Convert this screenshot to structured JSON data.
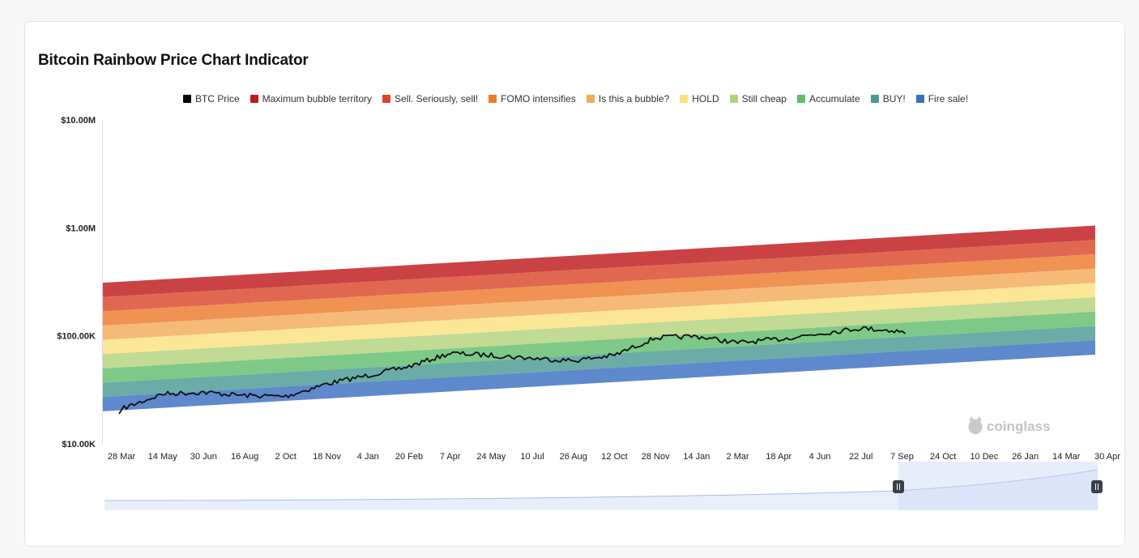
{
  "title": "Bitcoin Rainbow Price Chart Indicator",
  "watermark": "coinglass",
  "chart_data": {
    "type": "area",
    "title": "Bitcoin Rainbow Price Chart Indicator",
    "y_scale": "log",
    "ylim": [
      10000,
      10000000
    ],
    "y_ticks": [
      "$10.00K",
      "$100.00K",
      "$1.00M",
      "$10.00M"
    ],
    "y_tick_values": [
      10000,
      100000,
      1000000,
      10000000
    ],
    "x_tick_labels": [
      "28 Mar",
      "14 May",
      "30 Jun",
      "16 Aug",
      "2 Oct",
      "18 Nov",
      "4 Jan",
      "20 Feb",
      "7 Apr",
      "24 May",
      "10 Jul",
      "26 Aug",
      "12 Oct",
      "28 Nov",
      "14 Jan",
      "2 Mar",
      "18 Apr",
      "4 Jun",
      "22 Jul",
      "7 Sep",
      "24 Oct",
      "10 Dec",
      "26 Jan",
      "14 Mar",
      "30 Apr"
    ],
    "legend_position": "top-center",
    "grid": false,
    "band_edges": {
      "x": [
        "28 Mar",
        "30 Apr"
      ],
      "lower": [
        20000,
        67000
      ],
      "upper": [
        310000,
        1050000
      ]
    },
    "series": [
      {
        "name": "BTC Price",
        "color": "#000000",
        "x": [
          "28 Mar",
          "14 May",
          "30 Jun",
          "16 Aug",
          "2 Oct",
          "18 Nov",
          "4 Jan",
          "20 Feb",
          "7 Apr",
          "24 May",
          "10 Jul",
          "26 Aug",
          "12 Oct",
          "28 Nov",
          "14 Jan",
          "2 Mar",
          "18 Apr",
          "4 Jun",
          "22 Jul",
          "7 Sep"
        ],
        "values": [
          21000,
          29000,
          30000,
          28000,
          27500,
          36000,
          43000,
          52000,
          69000,
          66000,
          62000,
          59000,
          66000,
          96000,
          99000,
          86000,
          93000,
          105000,
          118000,
          110000
        ]
      },
      {
        "name": "Maximum bubble territory",
        "color": "#c0191c"
      },
      {
        "name": "Sell. Seriously, sell!",
        "color": "#d9472b"
      },
      {
        "name": "FOMO intensifies",
        "color": "#ec7a2c"
      },
      {
        "name": "Is this a bubble?",
        "color": "#f3ab59"
      },
      {
        "name": "HOLD",
        "color": "#fbe27f"
      },
      {
        "name": "Still cheap",
        "color": "#b3d27c"
      },
      {
        "name": "Accumulate",
        "color": "#62bd6d"
      },
      {
        "name": "BUY!",
        "color": "#4c9a93"
      },
      {
        "name": "Fire sale!",
        "color": "#3c6fc2"
      }
    ]
  }
}
